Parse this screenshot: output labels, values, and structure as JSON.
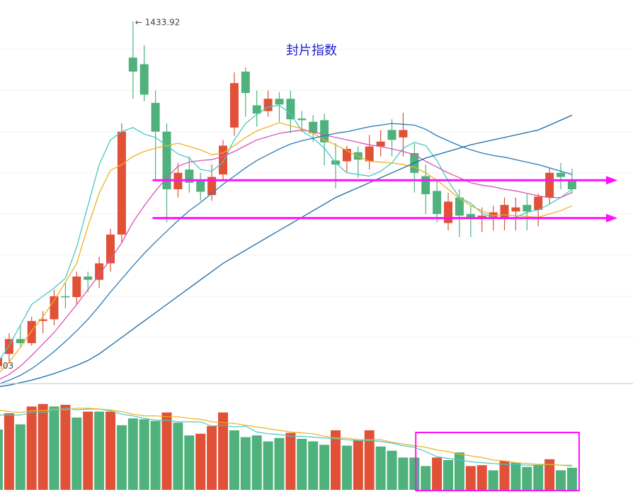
{
  "chart_data": {
    "type": "candlestick",
    "title": "封片指数",
    "max_label": "← 1433.92",
    "min_label": ".03",
    "colors": {
      "up": "#e05138",
      "down": "#4fb17c",
      "ma5": "#48c9c0",
      "ma10": "#f0b020",
      "ma20": "#d855b5",
      "ma30": "#2a7ab8",
      "ma60": "#1a6aa3",
      "vol_ma5": "#48c9c0",
      "vol_ma10": "#f0b020",
      "marker": "#ff11ff",
      "divider": "#c8c8c8"
    },
    "price_axis": {
      "min": 1000,
      "max": 1460
    },
    "volume_axis": {
      "min": 0,
      "max": 100
    },
    "candles": [
      [
        1015,
        1025,
        1010,
        1030
      ],
      [
        1030,
        1048,
        1020,
        1055
      ],
      [
        1048,
        1043,
        1038,
        1065
      ],
      [
        1043,
        1070,
        1040,
        1075
      ],
      [
        1070,
        1072,
        1055,
        1082
      ],
      [
        1072,
        1100,
        1065,
        1108
      ],
      [
        1100,
        1099,
        1085,
        1118
      ],
      [
        1099,
        1124,
        1090,
        1130
      ],
      [
        1124,
        1120,
        1105,
        1130
      ],
      [
        1120,
        1140,
        1110,
        1148
      ],
      [
        1140,
        1175,
        1130,
        1182
      ],
      [
        1175,
        1300,
        1165,
        1310
      ],
      [
        1390,
        1373,
        1340,
        1433.92
      ],
      [
        1382,
        1345,
        1337,
        1405
      ],
      [
        1335,
        1300,
        1240,
        1350
      ],
      [
        1300,
        1230,
        1190,
        1310
      ],
      [
        1230,
        1250,
        1220,
        1262
      ],
      [
        1254,
        1238,
        1226,
        1270
      ],
      [
        1240,
        1227,
        1216,
        1250
      ],
      [
        1223,
        1245,
        1216,
        1260
      ],
      [
        1248,
        1283,
        1240,
        1290
      ],
      [
        1305,
        1359,
        1295,
        1372
      ],
      [
        1373,
        1347,
        1318,
        1378
      ],
      [
        1332,
        1322,
        1306,
        1350
      ],
      [
        1325,
        1340,
        1318,
        1350
      ],
      [
        1340,
        1333,
        1312,
        1348
      ],
      [
        1340,
        1315,
        1298,
        1350
      ],
      [
        1316,
        1314,
        1300,
        1325
      ],
      [
        1312,
        1298,
        1288,
        1320
      ],
      [
        1314,
        1287,
        1259,
        1322
      ],
      [
        1265,
        1260,
        1231,
        1286
      ],
      [
        1264,
        1279,
        1251,
        1283
      ],
      [
        1275,
        1266,
        1244,
        1282
      ],
      [
        1264,
        1282,
        1254,
        1296
      ],
      [
        1282,
        1288,
        1270,
        1302
      ],
      [
        1302,
        1290,
        1270,
        1315
      ],
      [
        1293,
        1302,
        1270,
        1323
      ],
      [
        1274,
        1250,
        1226,
        1286
      ],
      [
        1246,
        1224,
        1200,
        1260
      ],
      [
        1228,
        1200,
        1190,
        1240
      ],
      [
        1189,
        1215,
        1180,
        1226
      ],
      [
        1220,
        1198,
        1172,
        1230
      ],
      [
        1200,
        1194,
        1172,
        1210
      ],
      [
        1194,
        1198,
        1178,
        1208
      ],
      [
        1196,
        1202,
        1180,
        1210
      ],
      [
        1196,
        1211,
        1180,
        1220
      ],
      [
        1203,
        1208,
        1180,
        1220
      ],
      [
        1211,
        1203,
        1180,
        1224
      ],
      [
        1205,
        1221,
        1185,
        1225
      ],
      [
        1220,
        1250,
        1212,
        1256
      ],
      [
        1250,
        1245,
        1230,
        1262
      ],
      [
        1240,
        1230,
        1225,
        1255
      ]
    ],
    "volumes": [
      [
        71,
        "d"
      ],
      [
        90,
        "u"
      ],
      [
        77,
        "d"
      ],
      [
        98,
        "u"
      ],
      [
        101,
        "u"
      ],
      [
        98,
        "d"
      ],
      [
        100,
        "u"
      ],
      [
        85,
        "d"
      ],
      [
        92,
        "u"
      ],
      [
        92,
        "d"
      ],
      [
        92,
        "u"
      ],
      [
        76,
        "d"
      ],
      [
        84,
        "d"
      ],
      [
        83,
        "d"
      ],
      [
        81,
        "d"
      ],
      [
        91,
        "u"
      ],
      [
        79,
        "d"
      ],
      [
        64,
        "d"
      ],
      [
        66,
        "u"
      ],
      [
        75,
        "u"
      ],
      [
        91,
        "u"
      ],
      [
        70,
        "d"
      ],
      [
        62,
        "d"
      ],
      [
        64,
        "d"
      ],
      [
        57,
        "d"
      ],
      [
        61,
        "d"
      ],
      [
        67,
        "u"
      ],
      [
        60,
        "d"
      ],
      [
        57,
        "d"
      ],
      [
        53,
        "d"
      ],
      [
        70,
        "u"
      ],
      [
        52,
        "d"
      ],
      [
        58,
        "u"
      ],
      [
        70,
        "u"
      ],
      [
        51,
        "d"
      ],
      [
        46,
        "d"
      ],
      [
        38,
        "d"
      ],
      [
        38,
        "d"
      ],
      [
        28,
        "d"
      ],
      [
        38,
        "u"
      ],
      [
        35,
        "d"
      ],
      [
        44,
        "d"
      ],
      [
        28,
        "u"
      ],
      [
        29,
        "u"
      ],
      [
        23,
        "d"
      ],
      [
        34,
        "u"
      ],
      [
        32,
        "d"
      ],
      [
        27,
        "d"
      ],
      [
        29,
        "d"
      ],
      [
        36,
        "u"
      ],
      [
        23,
        "d"
      ],
      [
        26,
        "d"
      ]
    ],
    "moving_averages": {
      "MA5": [
        1020,
        1040,
        1065,
        1090,
        1100,
        1110,
        1122,
        1160,
        1210,
        1260,
        1290,
        1300,
        1305,
        1297,
        1293,
        1283,
        1273,
        1268,
        1254,
        1252,
        1263,
        1290,
        1310,
        1321,
        1330,
        1332,
        1322,
        1301,
        1292,
        1280,
        1262,
        1250,
        1248,
        1246,
        1252,
        1262,
        1280,
        1287,
        1283,
        1265,
        1240,
        1220,
        1213,
        1201,
        1196,
        1194,
        1196,
        1202,
        1205,
        1212,
        1220,
        1230
      ],
      "MA10": [
        1005,
        1020,
        1038,
        1058,
        1075,
        1095,
        1117,
        1140,
        1185,
        1225,
        1253,
        1260,
        1270,
        1276,
        1280,
        1283,
        1286,
        1282,
        1278,
        1272,
        1274,
        1283,
        1293,
        1301,
        1306,
        1311,
        1307,
        1304,
        1298,
        1290,
        1284,
        1277,
        1270,
        1264,
        1263,
        1262,
        1260,
        1257,
        1250,
        1241,
        1230,
        1219,
        1210,
        1204,
        1198,
        1199,
        1198,
        1197,
        1196,
        1200,
        1204,
        1210
      ],
      "MA20": [
        998,
        1005,
        1015,
        1028,
        1042,
        1056,
        1073,
        1090,
        1108,
        1126,
        1145,
        1165,
        1190,
        1210,
        1228,
        1244,
        1258,
        1263,
        1265,
        1266,
        1270,
        1276,
        1283,
        1290,
        1294,
        1298,
        1300,
        1302,
        1300,
        1296,
        1293,
        1290,
        1287,
        1284,
        1282,
        1279,
        1276,
        1272,
        1264,
        1257,
        1250,
        1244,
        1238,
        1235,
        1233,
        1230,
        1228,
        1225,
        1222,
        1220,
        1220,
        1226
      ],
      "MA30": [
        993,
        998,
        1004,
        1012,
        1022,
        1033,
        1045,
        1058,
        1072,
        1088,
        1105,
        1121,
        1137,
        1152,
        1166,
        1179,
        1192,
        1204,
        1214,
        1225,
        1236,
        1246,
        1256,
        1265,
        1272,
        1279,
        1285,
        1289,
        1292,
        1295,
        1298,
        1300,
        1303,
        1306,
        1308,
        1310,
        1309,
        1308,
        1303,
        1295,
        1289,
        1283,
        1278,
        1274,
        1271,
        1269,
        1266,
        1263,
        1260,
        1256,
        1252,
        1248
      ],
      "MA60": [
        990,
        992,
        995,
        998,
        1002,
        1006,
        1011,
        1016,
        1022,
        1030,
        1040,
        1050,
        1060,
        1070,
        1080,
        1090,
        1100,
        1110,
        1120,
        1130,
        1140,
        1148,
        1156,
        1164,
        1172,
        1180,
        1188,
        1196,
        1204,
        1212,
        1220,
        1226,
        1232,
        1238,
        1244,
        1250,
        1256,
        1262,
        1268,
        1272,
        1276,
        1280,
        1284,
        1287,
        1290,
        1293,
        1296,
        1299,
        1302,
        1308,
        1314,
        1320
      ]
    },
    "volume_moving_averages": {
      "MA5": [
        88,
        88,
        88,
        91,
        91,
        93,
        96,
        94,
        95,
        95,
        93,
        89,
        87,
        84,
        82,
        82,
        80,
        80,
        80,
        75,
        76,
        74,
        75,
        68,
        66,
        65,
        63,
        63,
        62,
        61,
        60,
        59,
        58,
        58,
        57,
        55,
        52,
        50,
        45,
        39,
        37,
        35,
        33,
        32,
        31,
        30,
        30,
        29,
        29,
        30,
        29,
        28
      ],
      "MA10": [
        94,
        92,
        91,
        93,
        93,
        95,
        94,
        96,
        96,
        95,
        94,
        92,
        89,
        87,
        87,
        86,
        86,
        84,
        83,
        80,
        79,
        78,
        76,
        74,
        72,
        70,
        68,
        67,
        66,
        63,
        61,
        61,
        59,
        59,
        59,
        56,
        54,
        52,
        50,
        47,
        45,
        42,
        40,
        38,
        35,
        34,
        32,
        31,
        30,
        30,
        29,
        29
      ]
    },
    "annotations": [
      {
        "type": "horizontal-arrow",
        "start_candle": 15,
        "price": 1241
      },
      {
        "type": "horizontal-arrow",
        "start_candle": 15,
        "price": 1195
      },
      {
        "type": "highlight-box",
        "panel": "volume",
        "from_candle": 38,
        "to_candle": 51
      }
    ]
  }
}
